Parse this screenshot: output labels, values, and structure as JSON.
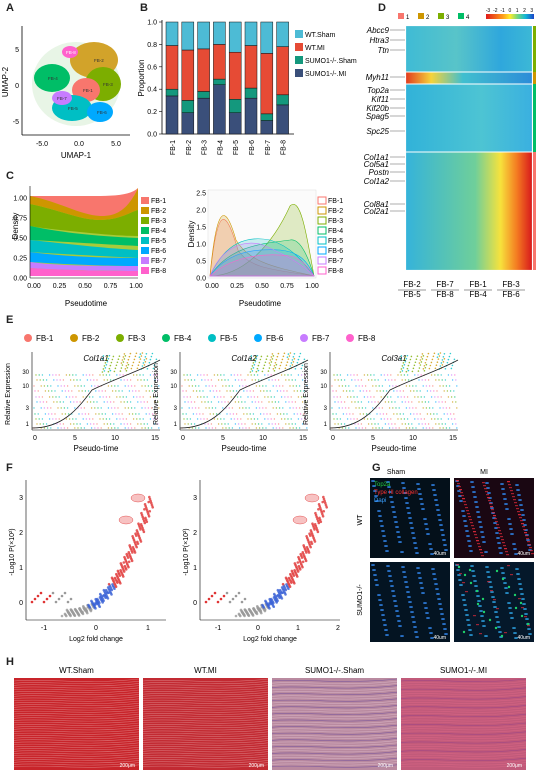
{
  "panels": {
    "A": "A",
    "B": "B",
    "C": "C",
    "D": "D",
    "E": "E",
    "F": "F",
    "G": "G",
    "H": "H"
  },
  "umap": {
    "xlabel": "UMAP-1",
    "ylabel": "UMAP-2",
    "xticks": [
      "-5.0",
      "0.0",
      "5.0"
    ],
    "yticks": [
      "5",
      "0",
      "-5"
    ],
    "clusters": [
      {
        "label": "FB-1",
        "color": "#f8766d"
      },
      {
        "label": "FB-2",
        "color": "#cd9600"
      },
      {
        "label": "FB-3",
        "color": "#7cae00"
      },
      {
        "label": "FB-4",
        "color": "#00be67"
      },
      {
        "label": "FB-5",
        "color": "#00bfc4"
      },
      {
        "label": "FB-6",
        "color": "#00a9ff"
      },
      {
        "label": "FB-7",
        "color": "#c77cff"
      },
      {
        "label": "FB-8",
        "color": "#ff61cc"
      }
    ]
  },
  "chart_data": [
    {
      "type": "bar",
      "panel": "B",
      "ylabel": "Proportion",
      "ylim": [
        0,
        1
      ],
      "yticks": [
        "0.0",
        "0.2",
        "0.4",
        "0.6",
        "0.8",
        "1.0"
      ],
      "categories": [
        "FB-1",
        "FB-2",
        "FB-3",
        "FB-4",
        "FB-5",
        "FB-6",
        "FB-7",
        "FB-8"
      ],
      "series": [
        {
          "name": "SUMO1-/-.MI",
          "color": "#3a4f7a",
          "values": [
            0.34,
            0.19,
            0.32,
            0.44,
            0.19,
            0.32,
            0.12,
            0.26
          ]
        },
        {
          "name": "SUMO1-/-.Sham",
          "color": "#14987d",
          "values": [
            0.06,
            0.11,
            0.06,
            0.05,
            0.12,
            0.09,
            0.06,
            0.09
          ]
        },
        {
          "name": "WT.MI",
          "color": "#e64b35",
          "values": [
            0.39,
            0.45,
            0.38,
            0.31,
            0.42,
            0.38,
            0.54,
            0.43
          ]
        },
        {
          "name": "WT.Sham",
          "color": "#4dbbd5",
          "values": [
            0.21,
            0.25,
            0.24,
            0.2,
            0.27,
            0.21,
            0.28,
            0.22
          ]
        }
      ]
    },
    {
      "type": "area",
      "panel": "C-left",
      "xlabel": "Pseudotime",
      "ylabel": "Density",
      "xticks": [
        "0.00",
        "0.25",
        "0.50",
        "0.75",
        "1.00"
      ],
      "yticks": [
        "0.00",
        "0.25",
        "0.50",
        "0.75",
        "1.00"
      ],
      "legend": [
        "FB-1",
        "FB-2",
        "FB-3",
        "FB-4",
        "FB-5",
        "FB-6",
        "FB-7",
        "FB-8"
      ]
    },
    {
      "type": "area",
      "panel": "C-right",
      "xlabel": "Pseudotime",
      "ylabel": "Density",
      "xticks": [
        "0.00",
        "0.25",
        "0.50",
        "0.75",
        "1.00"
      ],
      "yticks": [
        "0.0",
        "0.5",
        "1.0",
        "1.5",
        "2.0",
        "2.5"
      ],
      "legend": [
        "FB-1",
        "FB-2",
        "FB-3",
        "FB-4",
        "FB-5",
        "FB-6",
        "FB-7",
        "FB-8"
      ]
    },
    {
      "type": "scatter",
      "panel": "E",
      "ylabel": "Relative Expression",
      "xlabel": "Pseudo-time",
      "xticks": [
        "0",
        "5",
        "10",
        "15"
      ],
      "yticks": [
        "1",
        "3",
        "10",
        "30"
      ],
      "genes": [
        "Col1a1",
        "Col1a2",
        "Col3a1"
      ]
    },
    {
      "type": "scatter",
      "panel": "F",
      "xlabel": "Log2 fold change",
      "ylabel": "-Log10 P(×10²)"
    }
  ],
  "heatmap": {
    "groups": [
      "1",
      "2",
      "3",
      "4"
    ],
    "scale": [
      "-3",
      "-2",
      "-1",
      "0",
      "1",
      "2",
      "3"
    ],
    "genes": [
      "Abcc9",
      "Htra3",
      "Ttn",
      "Myh11",
      "Top2a",
      "Kif11",
      "Kif20b",
      "Spag5",
      "Spc25",
      "Col1a1",
      "Col5a1",
      "Postn",
      "Col1a2",
      "Col8a1",
      "Col2a1"
    ],
    "xlabels_top": [
      "FB-2",
      "FB-7",
      "FB-1",
      "FB-3"
    ],
    "xlabels_bottom": [
      "FB-5",
      "FB-8",
      "FB-4",
      "FB-6"
    ]
  },
  "legendE": [
    "FB-1",
    "FB-2",
    "FB-3",
    "FB-4",
    "FB-5",
    "FB-6",
    "FB-7",
    "FB-8"
  ],
  "panelG": {
    "cols": [
      "Sham",
      "MI"
    ],
    "rows": [
      "WT",
      "SUMO1-/-"
    ],
    "legend": [
      "Top2a",
      "Type III collagen",
      "Dapi"
    ],
    "scalebar": "40um"
  },
  "panelH": {
    "titles": [
      "WT.Sham",
      "WT.MI",
      "SUMO1-/-.Sham",
      "SUMO1-/-.MI"
    ],
    "scalebar": "200μm"
  }
}
